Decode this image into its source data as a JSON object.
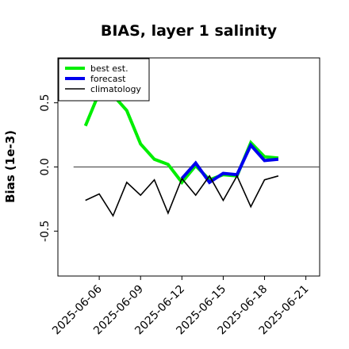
{
  "chart_data": {
    "type": "line",
    "title": "BIAS, layer 1 salinity",
    "xlabel": "",
    "ylabel": "Bias (1e-3)",
    "x": [
      "2025-06-05",
      "2025-06-06",
      "2025-06-07",
      "2025-06-08",
      "2025-06-09",
      "2025-06-10",
      "2025-06-11",
      "2025-06-12",
      "2025-06-13",
      "2025-06-14",
      "2025-06-15",
      "2025-06-16",
      "2025-06-17",
      "2025-06-18",
      "2025-06-19"
    ],
    "xlim": [
      "2025-06-03",
      "2025-06-22"
    ],
    "ylim": [
      -0.85,
      0.85
    ],
    "xticks": [
      "2025-06-06",
      "2025-06-09",
      "2025-06-12",
      "2025-06-15",
      "2025-06-18",
      "2025-06-21"
    ],
    "highlight_tick": "2025-06-12",
    "highlight_color": "#2e8b2e",
    "yticks": [
      -0.5,
      0.0,
      0.5
    ],
    "ytick_labels": [
      "-0.5",
      "0.0",
      "0.5"
    ],
    "zero_line": true,
    "grid": false,
    "legend_position": "top-left",
    "series": [
      {
        "name": "best est.",
        "color": "#00ee00",
        "linewidth": 4,
        "values": [
          0.32,
          0.58,
          0.56,
          0.44,
          0.18,
          0.06,
          0.02,
          -0.12,
          0.01,
          -0.1,
          -0.06,
          -0.07,
          0.19,
          0.08,
          0.07
        ]
      },
      {
        "name": "forecast",
        "color": "#0000ee",
        "linewidth": 4,
        "values": [
          null,
          null,
          null,
          null,
          null,
          null,
          null,
          -0.09,
          0.03,
          -0.12,
          -0.05,
          -0.06,
          0.17,
          0.05,
          0.06
        ]
      },
      {
        "name": "climatology",
        "color": "#000000",
        "linewidth": 1.6,
        "values": [
          -0.26,
          -0.21,
          -0.38,
          -0.12,
          -0.22,
          -0.1,
          -0.36,
          -0.09,
          -0.22,
          -0.07,
          -0.26,
          -0.07,
          -0.31,
          -0.1,
          -0.07
        ]
      }
    ]
  }
}
